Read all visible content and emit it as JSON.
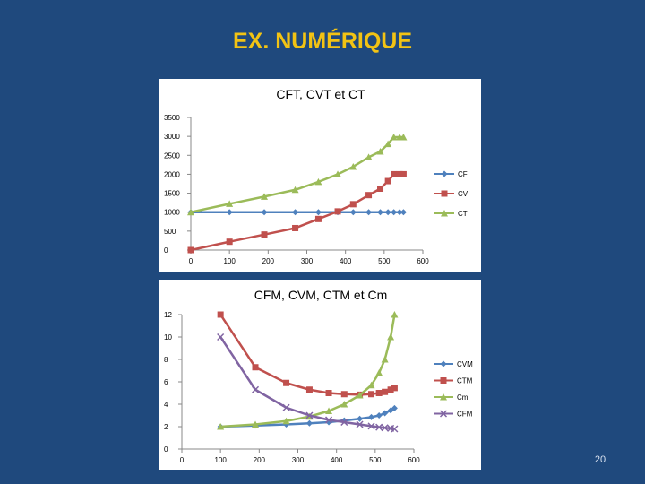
{
  "slide": {
    "title": "EX. NUMÉRIQUE",
    "page_number": "20"
  },
  "chart_data": [
    {
      "type": "line",
      "title": "CFT, CVT et CT",
      "xlim": [
        0,
        600
      ],
      "ylim": [
        0,
        3500
      ],
      "xticks": [
        "0",
        "100",
        "200",
        "300",
        "400",
        "500",
        "600"
      ],
      "yticks": [
        "0",
        "500",
        "1000",
        "1500",
        "2000",
        "2500",
        "3000",
        "3500"
      ],
      "legend": "right",
      "grid": false,
      "series": [
        {
          "name": "CF",
          "color": "#4f81bd",
          "marker": "diamond",
          "x": [
            0,
            100,
            190,
            270,
            330,
            380,
            420,
            460,
            490,
            510,
            525,
            540,
            550
          ],
          "y": [
            1000,
            1000,
            1000,
            1000,
            1000,
            1000,
            1000,
            1000,
            1000,
            1000,
            1000,
            1000,
            1000
          ]
        },
        {
          "name": "CV",
          "color": "#c0504d",
          "marker": "square",
          "x": [
            0,
            100,
            190,
            270,
            330,
            380,
            420,
            460,
            490,
            510,
            525,
            540,
            550
          ],
          "y": [
            0,
            220,
            410,
            580,
            820,
            1020,
            1210,
            1450,
            1620,
            1820,
            2000,
            2000,
            2000
          ]
        },
        {
          "name": "CT",
          "color": "#9bbb59",
          "marker": "triangle",
          "x": [
            0,
            100,
            190,
            270,
            330,
            380,
            420,
            460,
            490,
            510,
            525,
            540,
            550
          ],
          "y": [
            1000,
            1220,
            1410,
            1590,
            1800,
            2000,
            2200,
            2450,
            2600,
            2800,
            2980,
            2980,
            2980
          ]
        }
      ]
    },
    {
      "type": "line",
      "title": "CFM, CVM, CTM et Cm",
      "xlim": [
        0,
        600
      ],
      "ylim": [
        0,
        12
      ],
      "xticks": [
        "0",
        "100",
        "200",
        "300",
        "400",
        "500",
        "600"
      ],
      "yticks": [
        "0",
        "2",
        "4",
        "6",
        "8",
        "10",
        "12"
      ],
      "legend": "right",
      "grid": false,
      "series": [
        {
          "name": "CVM",
          "color": "#4f81bd",
          "marker": "diamond",
          "x": [
            100,
            190,
            270,
            330,
            380,
            420,
            460,
            490,
            510,
            525,
            540,
            550
          ],
          "y": [
            2.0,
            2.1,
            2.2,
            2.3,
            2.4,
            2.55,
            2.7,
            2.85,
            3.0,
            3.2,
            3.45,
            3.65
          ]
        },
        {
          "name": "CTM",
          "color": "#c0504d",
          "marker": "square",
          "x": [
            100,
            190,
            270,
            330,
            380,
            420,
            460,
            490,
            510,
            525,
            540,
            550
          ],
          "y": [
            12.0,
            7.3,
            5.9,
            5.3,
            5.0,
            4.9,
            4.85,
            4.9,
            5.0,
            5.1,
            5.3,
            5.45
          ]
        },
        {
          "name": "Cm",
          "color": "#9bbb59",
          "marker": "triangle",
          "x": [
            100,
            190,
            270,
            330,
            380,
            420,
            460,
            490,
            510,
            525,
            540,
            550
          ],
          "y": [
            2.0,
            2.2,
            2.5,
            2.9,
            3.4,
            4.0,
            4.8,
            5.7,
            6.8,
            8.0,
            10.0,
            12.0
          ]
        },
        {
          "name": "CFM",
          "color": "#8064a2",
          "marker": "x",
          "x": [
            100,
            190,
            270,
            330,
            380,
            420,
            460,
            490,
            510,
            525,
            540,
            550
          ],
          "y": [
            10.0,
            5.3,
            3.7,
            3.0,
            2.6,
            2.4,
            2.2,
            2.05,
            1.95,
            1.9,
            1.85,
            1.8
          ]
        }
      ]
    }
  ]
}
